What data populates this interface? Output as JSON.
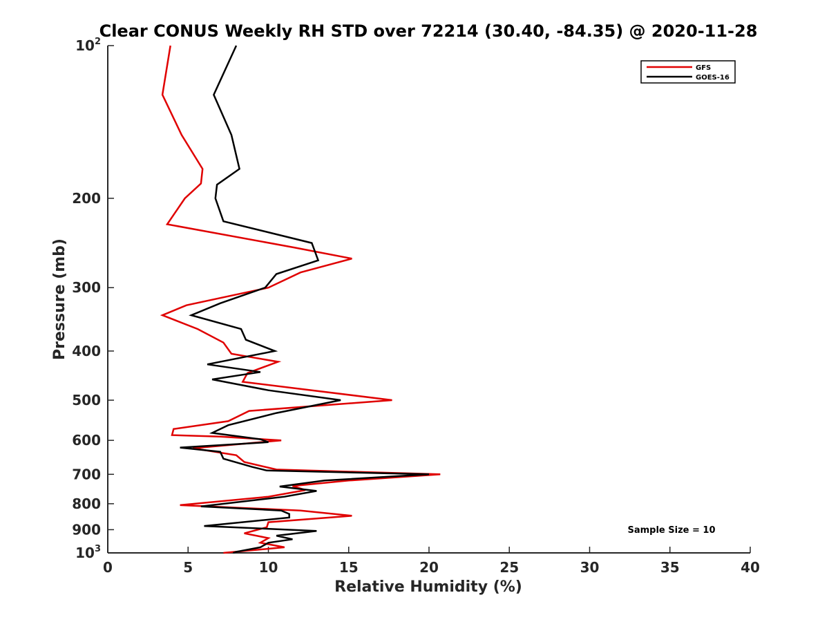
{
  "chart_data": {
    "type": "line",
    "title": "Clear CONUS Weekly RH STD over 72214 (30.40, -84.35) @ 2020-11-28",
    "xlabel": "Relative Humidity (%)",
    "ylabel": "Pressure (mb)",
    "xlim": [
      0,
      40
    ],
    "ylim": [
      100,
      1000
    ],
    "yscale": "log",
    "y_reversed": true,
    "x_ticks": [
      "0",
      "5",
      "10",
      "15",
      "20",
      "25",
      "30",
      "35",
      "40"
    ],
    "x_tick_values": [
      0,
      5,
      10,
      15,
      20,
      25,
      30,
      35,
      40
    ],
    "y_ticks": [
      {
        "value": 100,
        "base": "10",
        "exp": "2"
      },
      {
        "value": 200,
        "label": "200"
      },
      {
        "value": 300,
        "label": "300"
      },
      {
        "value": 400,
        "label": "400"
      },
      {
        "value": 500,
        "label": "500"
      },
      {
        "value": 600,
        "label": "600"
      },
      {
        "value": 700,
        "label": "700"
      },
      {
        "value": 800,
        "label": "800"
      },
      {
        "value": 900,
        "label": "900"
      },
      {
        "value": 1000,
        "base": "10",
        "exp": "3"
      }
    ],
    "legend_position": "top-right",
    "annotation": "Sample Size = 10",
    "series": [
      {
        "name": "GFS",
        "color": "#e00000",
        "points": [
          [
            3.9,
            100
          ],
          [
            3.4,
            125
          ],
          [
            4.6,
            150
          ],
          [
            5.9,
            175
          ],
          [
            5.8,
            187
          ],
          [
            4.8,
            200
          ],
          [
            3.7,
            225
          ],
          [
            11.6,
            250
          ],
          [
            15.2,
            263
          ],
          [
            12.0,
            280
          ],
          [
            10.0,
            300
          ],
          [
            4.9,
            325
          ],
          [
            3.4,
            340
          ],
          [
            5.6,
            362
          ],
          [
            7.2,
            385
          ],
          [
            7.7,
            405
          ],
          [
            10.6,
            420
          ],
          [
            8.7,
            442
          ],
          [
            8.4,
            460
          ],
          [
            12.0,
            475
          ],
          [
            17.7,
            500
          ],
          [
            8.8,
            525
          ],
          [
            7.5,
            550
          ],
          [
            4.1,
            570
          ],
          [
            4.0,
            586
          ],
          [
            7.0,
            590
          ],
          [
            10.8,
            600
          ],
          [
            5.3,
            622
          ],
          [
            8.0,
            642
          ],
          [
            8.5,
            662
          ],
          [
            10.5,
            685
          ],
          [
            20.7,
            700
          ],
          [
            15.0,
            720
          ],
          [
            11.5,
            738
          ],
          [
            12.3,
            752
          ],
          [
            10.0,
            775
          ],
          [
            4.5,
            805
          ],
          [
            12.0,
            825
          ],
          [
            15.2,
            845
          ],
          [
            10.0,
            870
          ],
          [
            9.9,
            890
          ],
          [
            8.5,
            915
          ],
          [
            10.0,
            935
          ],
          [
            9.5,
            955
          ],
          [
            11.0,
            975
          ],
          [
            7.2,
            1000
          ]
        ]
      },
      {
        "name": "GOES-16",
        "color": "#000000",
        "points": [
          [
            8.0,
            100
          ],
          [
            6.6,
            125
          ],
          [
            7.7,
            150
          ],
          [
            8.2,
            175
          ],
          [
            6.8,
            188
          ],
          [
            6.7,
            200
          ],
          [
            7.2,
            222
          ],
          [
            12.7,
            245
          ],
          [
            13.1,
            265
          ],
          [
            10.5,
            282
          ],
          [
            9.8,
            300
          ],
          [
            7.0,
            322
          ],
          [
            5.2,
            340
          ],
          [
            8.3,
            362
          ],
          [
            8.6,
            380
          ],
          [
            10.4,
            400
          ],
          [
            6.2,
            425
          ],
          [
            9.5,
            440
          ],
          [
            6.5,
            455
          ],
          [
            10.0,
            478
          ],
          [
            14.5,
            500
          ],
          [
            10.5,
            530
          ],
          [
            7.5,
            560
          ],
          [
            6.5,
            580
          ],
          [
            9.5,
            597
          ],
          [
            10.0,
            605
          ],
          [
            4.5,
            620
          ],
          [
            7.0,
            632
          ],
          [
            7.2,
            652
          ],
          [
            9.0,
            677
          ],
          [
            9.9,
            688
          ],
          [
            20.0,
            700
          ],
          [
            13.5,
            720
          ],
          [
            10.7,
            740
          ],
          [
            13.0,
            755
          ],
          [
            11.0,
            775
          ],
          [
            5.8,
            810
          ],
          [
            10.8,
            825
          ],
          [
            11.3,
            838
          ],
          [
            11.3,
            852
          ],
          [
            6.0,
            885
          ],
          [
            13.0,
            905
          ],
          [
            10.5,
            925
          ],
          [
            11.5,
            940
          ],
          [
            10.0,
            955
          ],
          [
            9.5,
            975
          ],
          [
            8.0,
            995
          ],
          [
            7.8,
            1000
          ]
        ]
      }
    ]
  }
}
